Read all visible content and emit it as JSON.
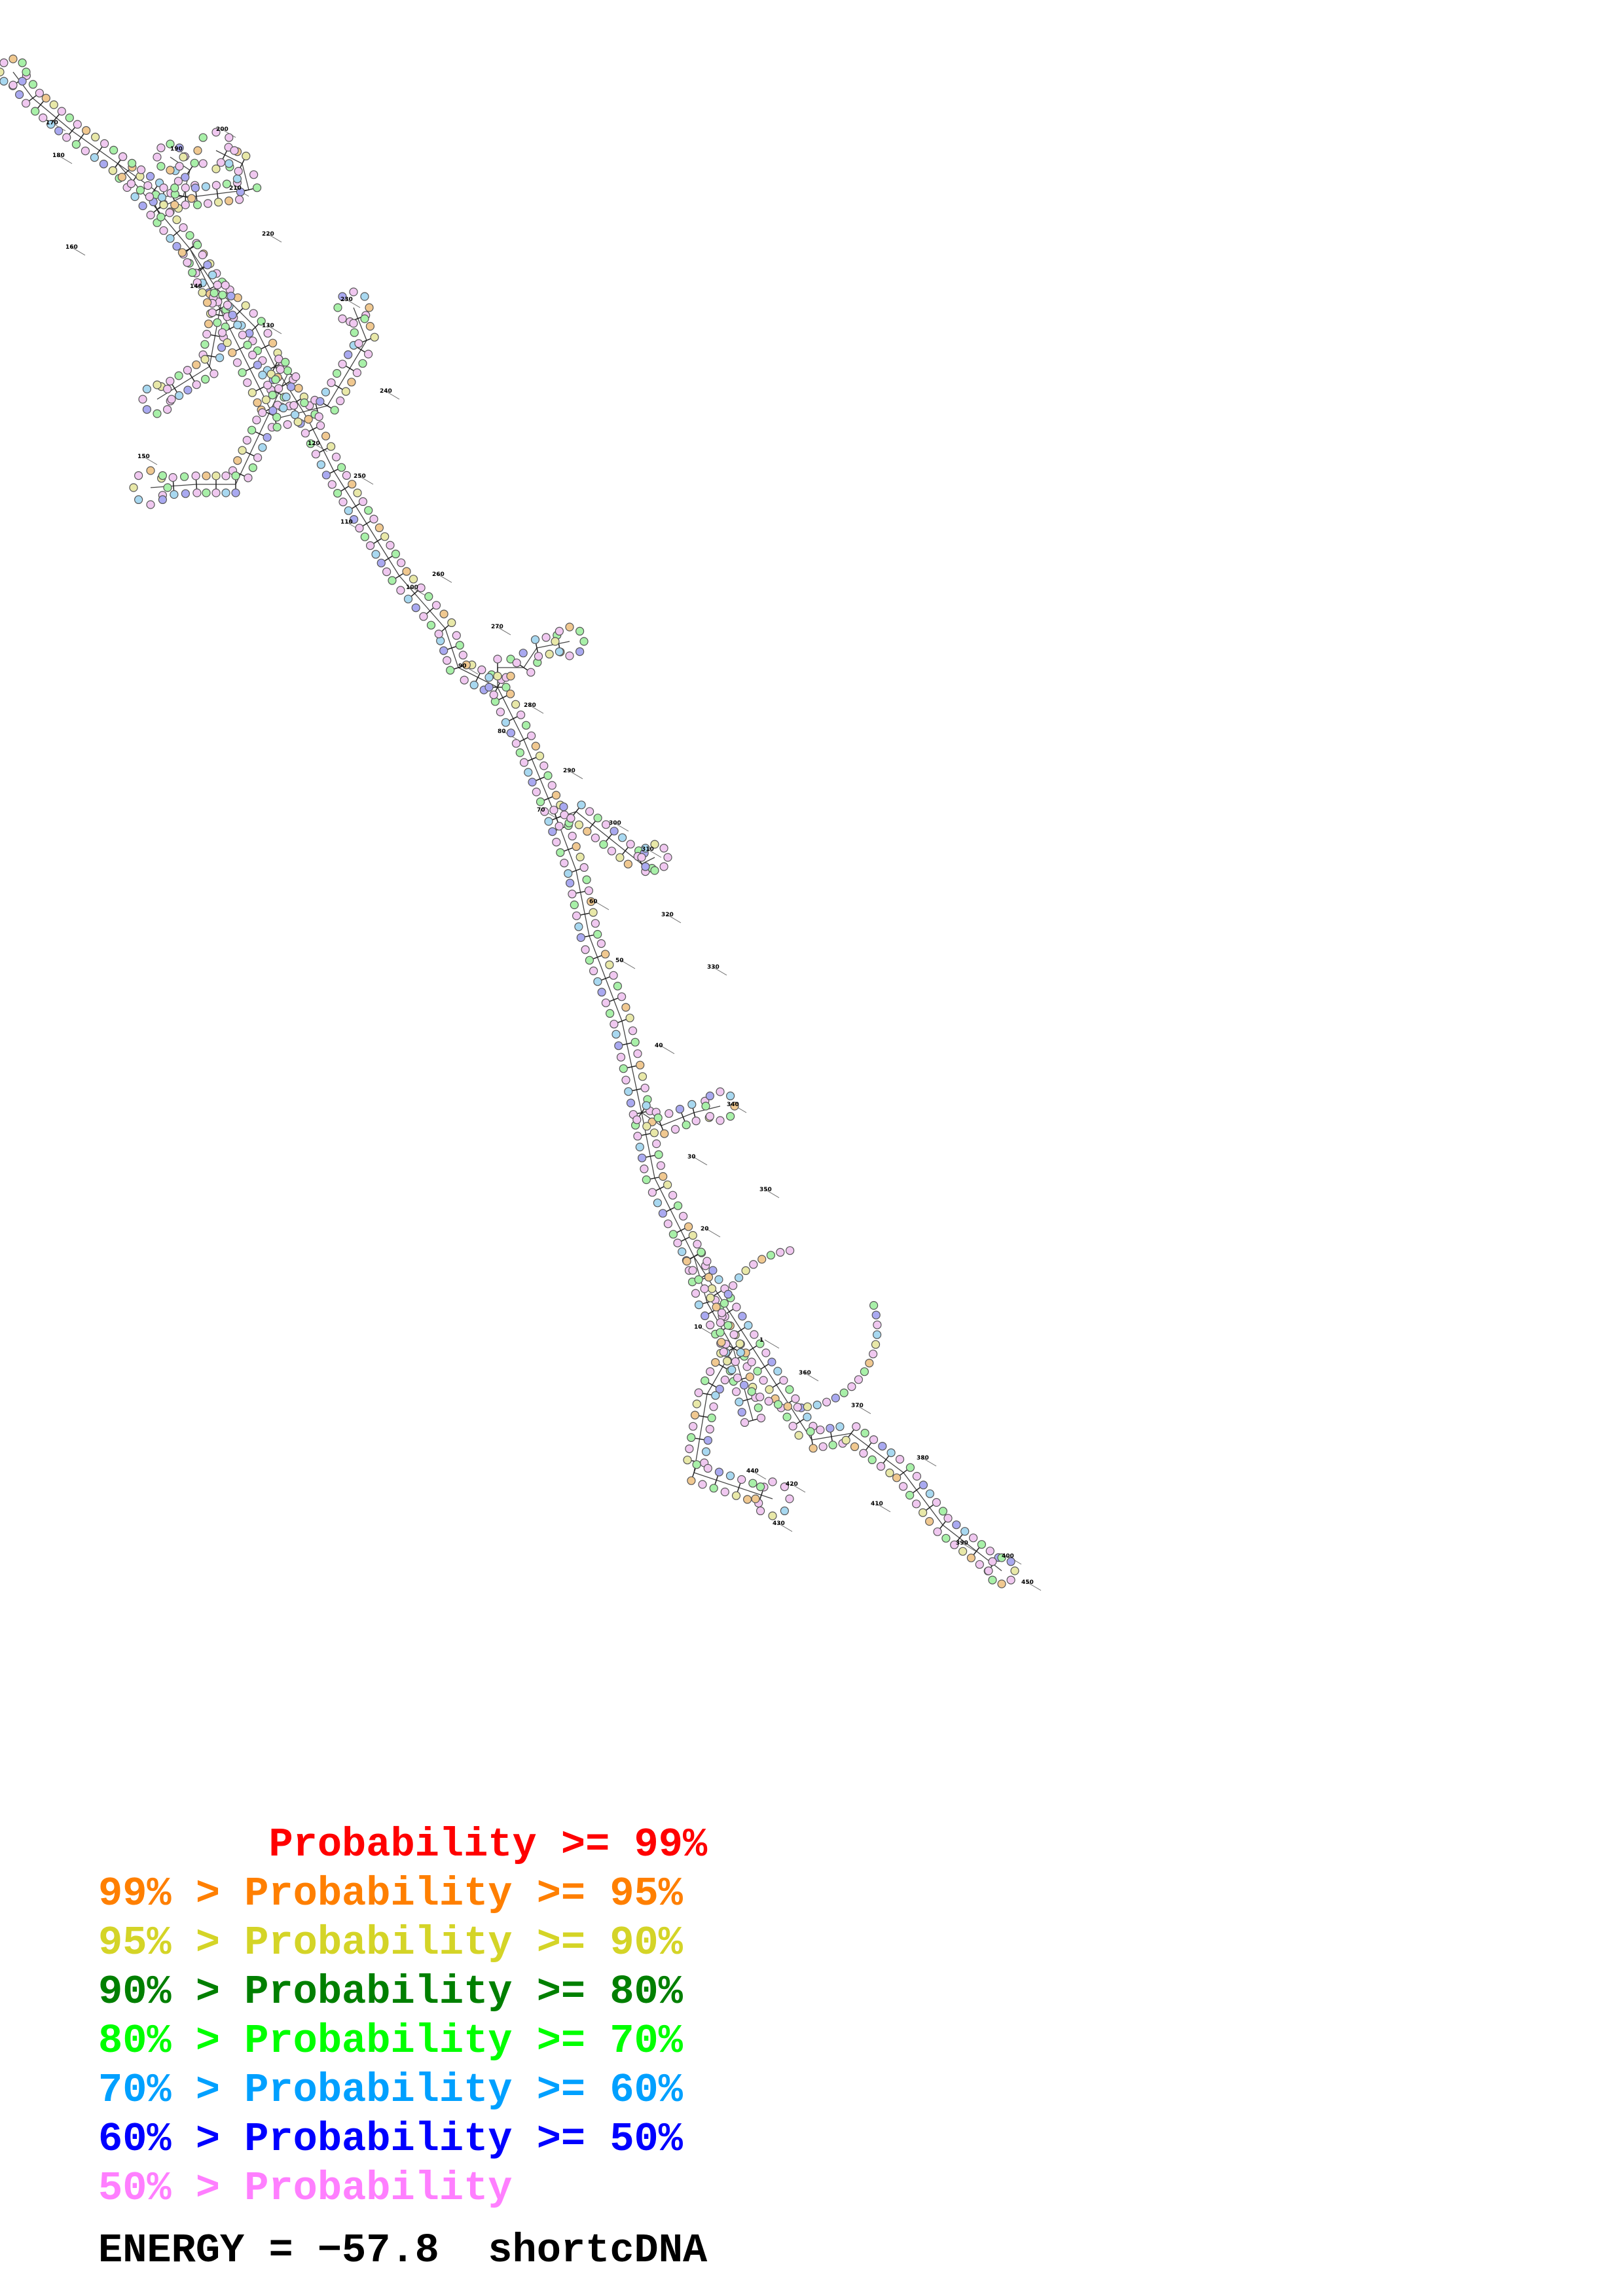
{
  "title": "",
  "structure": {
    "backbone_segments": 16,
    "label_numbers": [
      "1",
      "10",
      "20",
      "30",
      "40",
      "50",
      "60",
      "70",
      "80",
      "90",
      "100",
      "110",
      "120",
      "130",
      "140",
      "150",
      "160",
      "170",
      "180",
      "190",
      "200",
      "210",
      "220",
      "230",
      "240",
      "250",
      "260",
      "270",
      "280",
      "290",
      "300",
      "310",
      "320",
      "330",
      "340",
      "350",
      "360",
      "370",
      "380",
      "390",
      "400",
      "410",
      "420",
      "430",
      "440",
      "450"
    ]
  },
  "legend": {
    "items": [
      {
        "text": "       Probability >= 99%",
        "color": "#ff0000"
      },
      {
        "text": "99% > Probability >= 95%",
        "color": "#ff7f00"
      },
      {
        "text": "95% > Probability >= 90%",
        "color": "#d4d427"
      },
      {
        "text": "90% > Probability >= 80%",
        "color": "#007f00"
      },
      {
        "text": "80% > Probability >= 70%",
        "color": "#00ff00"
      },
      {
        "text": "70% > Probability >= 60%",
        "color": "#00a0ff"
      },
      {
        "text": "60% > Probability >= 50%",
        "color": "#0000ff"
      },
      {
        "text": "50% > Probability",
        "color": "#ff7fff"
      }
    ],
    "energy_text": "ENERGY = −57.8  shortcDNA"
  },
  "node_palette": {
    "green": "#a8f0a8",
    "blue": "#a9a9f0",
    "pink": "#f0c8f0",
    "cyan": "#a8d8f0",
    "orange": "#f0c890",
    "yellow": "#e8e8a8"
  }
}
